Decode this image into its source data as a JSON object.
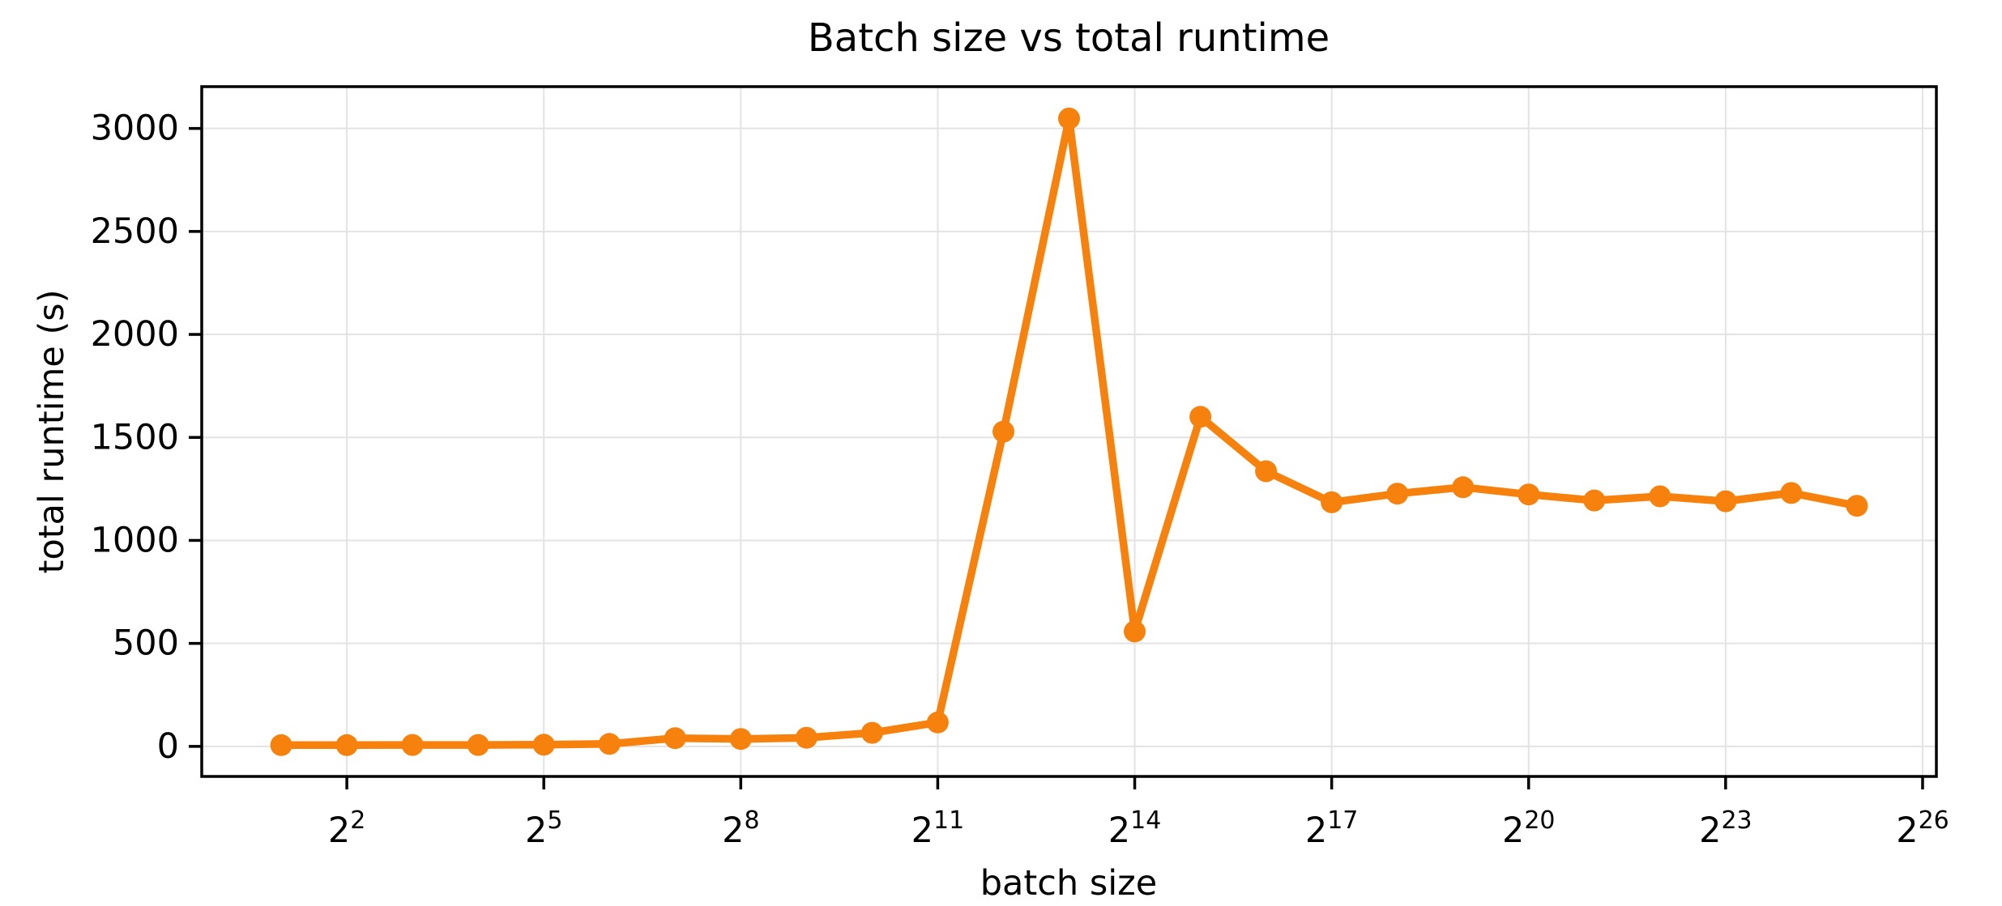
{
  "figure": {
    "background_color": "#ffffff",
    "text_color": "#000000"
  },
  "chart_data": {
    "type": "line",
    "title": "Batch size vs total runtime",
    "xlabel": "batch size",
    "ylabel": "total runtime (s)",
    "x_scale": "log2",
    "grid": true,
    "grid_color": "#e3e3e3",
    "spine_color": "#000000",
    "legend_position": "none",
    "x_tick_base": "2",
    "x_tick_exponents": [
      2,
      5,
      8,
      11,
      14,
      17,
      20,
      23,
      26
    ],
    "y_ticks": [
      0,
      500,
      1000,
      1500,
      2000,
      2500,
      3000
    ],
    "xlim_exponents": [
      -0.21,
      26.21
    ],
    "ylim": [
      -146,
      3203
    ],
    "series": [
      {
        "name": "total runtime",
        "color": "#f6820d",
        "marker": "circle",
        "x_exponents": [
          1,
          2,
          3,
          4,
          5,
          6,
          7,
          8,
          9,
          10,
          11,
          12,
          13,
          14,
          15,
          16,
          17,
          18,
          19,
          20,
          21,
          22,
          23,
          24,
          25
        ],
        "x_values": [
          2,
          4,
          8,
          16,
          32,
          64,
          128,
          256,
          512,
          1024,
          2048,
          4096,
          8192,
          16384,
          32768,
          65536,
          131072,
          262144,
          524288,
          1048576,
          2097152,
          4194304,
          8388608,
          16777216,
          33554432
        ],
        "values": [
          6,
          6,
          7,
          7,
          8,
          12,
          40,
          36,
          42,
          66,
          116,
          1528,
          3048,
          558,
          1600,
          1336,
          1185,
          1227,
          1258,
          1223,
          1194,
          1214,
          1190,
          1230,
          1168
        ]
      }
    ]
  }
}
